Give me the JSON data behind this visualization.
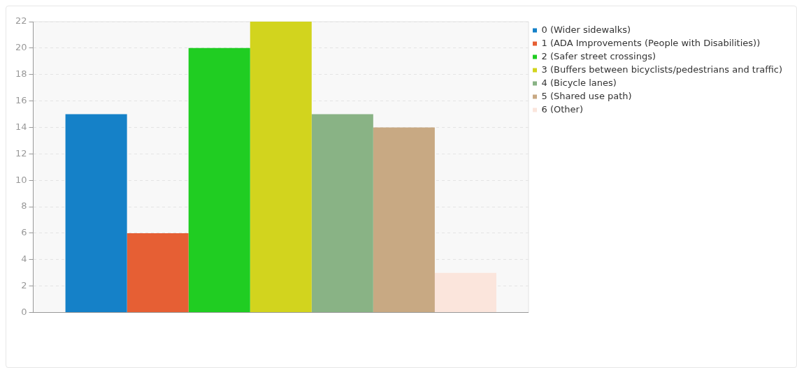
{
  "chart_data": {
    "type": "bar",
    "categories": [
      null
    ],
    "series": [
      {
        "name": "0 (Wider sidewalks)",
        "color": "#1581c8",
        "values": [
          15
        ]
      },
      {
        "name": "1 (ADA Improvements (People with Disabilities))",
        "color": "#e65f34",
        "values": [
          6
        ]
      },
      {
        "name": "2 (Safer street crossings)",
        "color": "#20cd22",
        "values": [
          20
        ]
      },
      {
        "name": "3 (Buffers between bicyclists/pedestrians and traffic)",
        "color": "#d2d41e",
        "values": [
          22
        ]
      },
      {
        "name": "4 (Bicycle lanes)",
        "color": "#89b385",
        "values": [
          15
        ]
      },
      {
        "name": "5 (Shared use path)",
        "color": "#c8a983",
        "values": [
          14
        ]
      },
      {
        "name": "6 (Other)",
        "color": "#fbe5dc",
        "values": [
          3
        ]
      }
    ],
    "ylim": [
      0,
      22
    ],
    "yticks": [
      0,
      2,
      4,
      6,
      8,
      10,
      12,
      14,
      16,
      18,
      20,
      22
    ],
    "grid": "y",
    "legend": "top right"
  }
}
